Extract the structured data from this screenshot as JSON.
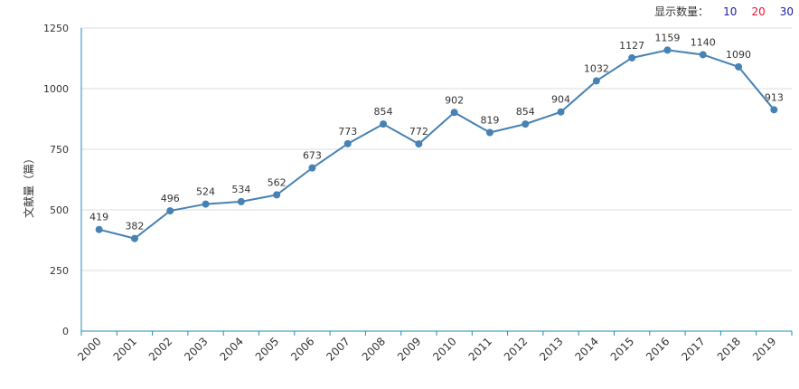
{
  "display_count": {
    "label": "显示数量：",
    "options": [
      {
        "label": "10",
        "color": "#1a1aa6"
      },
      {
        "label": "20",
        "color": "#e8112d"
      },
      {
        "label": "30",
        "color": "#1a1aa6"
      }
    ]
  },
  "chart_data": {
    "type": "line",
    "ylabel": "文献量（篇）",
    "x": [
      "2000",
      "2001",
      "2002",
      "2003",
      "2004",
      "2005",
      "2006",
      "2007",
      "2008",
      "2009",
      "2010",
      "2011",
      "2012",
      "2013",
      "2014",
      "2015",
      "2016",
      "2017",
      "2018",
      "2019"
    ],
    "values": [
      419,
      382,
      496,
      524,
      534,
      562,
      673,
      773,
      854,
      772,
      902,
      819,
      854,
      904,
      1032,
      1127,
      1159,
      1140,
      1090,
      913
    ],
    "ylim": [
      0,
      1250
    ],
    "yticks": [
      0,
      250,
      500,
      750,
      1000,
      1250
    ],
    "grid": true,
    "line_color": "#4682b4",
    "axis_color": "#1f8fb5",
    "grid_color": "#dddddd"
  }
}
